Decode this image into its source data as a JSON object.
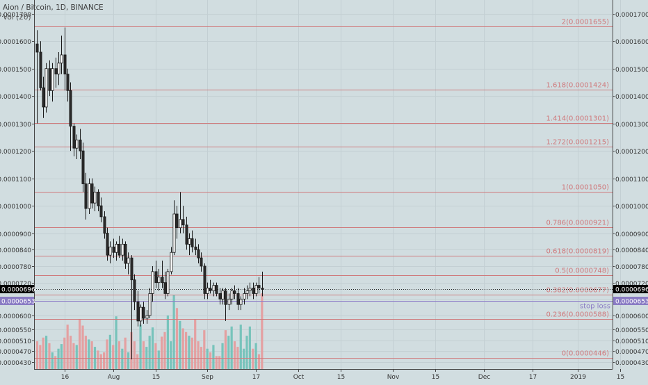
{
  "header": {
    "title": "Aion / Bitcoin, 1D, BINANCE",
    "volume_label": "Vol (20)"
  },
  "chart_data": {
    "type": "candlestick",
    "symbol": "Aion / Bitcoin",
    "interval": "1D",
    "exchange": "BINANCE",
    "ylim": [
      4.05e-05,
      0.000175
    ],
    "y_tick_labels": [
      "0.0001700",
      "0.0001600",
      "0.0001500",
      "0.0001400",
      "0.0001300",
      "0.0001200",
      "0.0001100",
      "0.0001000",
      "0.0000900",
      "0.0000840",
      "0.0000780",
      "0.0000720",
      "0.0000660",
      "0.0000600",
      "0.0000550",
      "0.0000510",
      "0.0000470",
      "0.0000430"
    ],
    "y_ticks": [
      0.00017,
      0.00016,
      0.00015,
      0.00014,
      0.00013,
      0.00012,
      0.00011,
      0.0001,
      9e-05,
      8.4e-05,
      7.8e-05,
      7.2e-05,
      6.6e-05,
      6e-05,
      5.5e-05,
      5.1e-05,
      4.7e-05,
      4.3e-05
    ],
    "x_tick_labels": [
      "16",
      "Aug",
      "15",
      "Sep",
      "17",
      "Oct",
      "15",
      "Nov",
      "15",
      "Dec",
      "17",
      "2019",
      "15"
    ],
    "x_ticks": [
      "2018-07-16",
      "2018-08-01",
      "2018-08-15",
      "2018-09-01",
      "2018-09-17",
      "2018-10-01",
      "2018-10-15",
      "2018-11-01",
      "2018-11-15",
      "2018-12-01",
      "2018-12-17",
      "2019-01-01",
      "2019-01-15"
    ],
    "fib_levels": [
      {
        "label": "2(0.0001655)",
        "value": 0.0001655
      },
      {
        "label": "1.618(0.0001424)",
        "value": 0.0001424
      },
      {
        "label": "1.414(0.0001301)",
        "value": 0.0001301
      },
      {
        "label": "1.272(0.0001215)",
        "value": 0.0001215
      },
      {
        "label": "1(0.0001050)",
        "value": 0.000105
      },
      {
        "label": "0.786(0.0000921)",
        "value": 9.21e-05
      },
      {
        "label": "0.618(0.0000819)",
        "value": 8.19e-05
      },
      {
        "label": "0.5(0.0000748)",
        "value": 7.48e-05
      },
      {
        "label": "0.382(0.0000677)",
        "value": 6.77e-05
      },
      {
        "label": "0.236(0.0000588)",
        "value": 5.88e-05
      },
      {
        "label": "0(0.0000446)",
        "value": 4.46e-05
      }
    ],
    "stop_loss": {
      "label": "stop loss",
      "value": 6.53e-05,
      "badge": "0.0000653"
    },
    "last_price": {
      "value": 6.96e-05,
      "badge": "0.0000696"
    },
    "candles": [
      {
        "date": "2018-07-07",
        "o": 0.000159,
        "h": 0.000164,
        "l": 0.00013,
        "c": 0.000156,
        "v": 0.3
      },
      {
        "date": "2018-07-08",
        "o": 0.000156,
        "h": 0.00016,
        "l": 0.000142,
        "c": 0.000143,
        "v": 0.26
      },
      {
        "date": "2018-07-09",
        "o": 0.000143,
        "h": 0.000147,
        "l": 0.000132,
        "c": 0.000136,
        "v": 0.34
      },
      {
        "date": "2018-07-10",
        "o": 0.000136,
        "h": 0.000152,
        "l": 0.000134,
        "c": 0.00015,
        "v": 0.36
      },
      {
        "date": "2018-07-11",
        "o": 0.00015,
        "h": 0.000153,
        "l": 0.00014,
        "c": 0.000142,
        "v": 0.28
      },
      {
        "date": "2018-07-12",
        "o": 0.000142,
        "h": 0.000152,
        "l": 0.000138,
        "c": 0.00015,
        "v": 0.18
      },
      {
        "date": "2018-07-13",
        "o": 0.00015,
        "h": 0.000154,
        "l": 0.000143,
        "c": 0.000148,
        "v": 0.14
      },
      {
        "date": "2018-07-14",
        "o": 0.000148,
        "h": 0.000156,
        "l": 0.000144,
        "c": 0.000152,
        "v": 0.22
      },
      {
        "date": "2018-07-15",
        "o": 0.000152,
        "h": 0.000162,
        "l": 0.000148,
        "c": 0.000155,
        "v": 0.27
      },
      {
        "date": "2018-07-16",
        "o": 0.000155,
        "h": 0.000165,
        "l": 0.000142,
        "c": 0.000148,
        "v": 0.34
      },
      {
        "date": "2018-07-17",
        "o": 0.000148,
        "h": 0.00015,
        "l": 0.000138,
        "c": 0.000142,
        "v": 0.48
      },
      {
        "date": "2018-07-18",
        "o": 0.000142,
        "h": 0.000145,
        "l": 0.00012,
        "c": 0.000129,
        "v": 0.36
      },
      {
        "date": "2018-07-19",
        "o": 0.000129,
        "h": 0.00013,
        "l": 0.000118,
        "c": 0.000121,
        "v": 0.28
      },
      {
        "date": "2018-07-20",
        "o": 0.000121,
        "h": 0.000126,
        "l": 0.000117,
        "c": 0.000124,
        "v": 0.26
      },
      {
        "date": "2018-07-21",
        "o": 0.000124,
        "h": 0.000128,
        "l": 0.000117,
        "c": 0.00012,
        "v": 0.54
      },
      {
        "date": "2018-07-22",
        "o": 0.00012,
        "h": 0.000123,
        "l": 0.000105,
        "c": 0.000108,
        "v": 0.47
      },
      {
        "date": "2018-07-23",
        "o": 0.000108,
        "h": 0.000112,
        "l": 9.5e-05,
        "c": 9.9e-05,
        "v": 0.36
      },
      {
        "date": "2018-07-24",
        "o": 9.9e-05,
        "h": 0.00011,
        "l": 9.7e-05,
        "c": 0.000108,
        "v": 0.32
      },
      {
        "date": "2018-07-25",
        "o": 0.000108,
        "h": 0.00011,
        "l": 9.9e-05,
        "c": 0.000101,
        "v": 0.3
      },
      {
        "date": "2018-07-26",
        "o": 0.000101,
        "h": 0.000107,
        "l": 9.8e-05,
        "c": 0.000105,
        "v": 0.24
      },
      {
        "date": "2018-07-27",
        "o": 0.000105,
        "h": 0.000106,
        "l": 9.8e-05,
        "c": 0.0001,
        "v": 0.2
      },
      {
        "date": "2018-07-28",
        "o": 0.0001,
        "h": 0.000103,
        "l": 9.4e-05,
        "c": 9.6e-05,
        "v": 0.16
      },
      {
        "date": "2018-07-29",
        "o": 9.6e-05,
        "h": 9.8e-05,
        "l": 8.8e-05,
        "c": 9e-05,
        "v": 0.18
      },
      {
        "date": "2018-07-30",
        "o": 9e-05,
        "h": 9.2e-05,
        "l": 8e-05,
        "c": 8.2e-05,
        "v": 0.32
      },
      {
        "date": "2018-07-31",
        "o": 8.2e-05,
        "h": 8.7e-05,
        "l": 7.9e-05,
        "c": 8.5e-05,
        "v": 0.37
      },
      {
        "date": "2018-08-01",
        "o": 8.5e-05,
        "h": 8.8e-05,
        "l": 8.1e-05,
        "c": 8.3e-05,
        "v": 0.26
      },
      {
        "date": "2018-08-02",
        "o": 8.3e-05,
        "h": 8.7e-05,
        "l": 8e-05,
        "c": 8.6e-05,
        "v": 0.57
      },
      {
        "date": "2018-08-03",
        "o": 8.6e-05,
        "h": 8.9e-05,
        "l": 8.1e-05,
        "c": 8.2e-05,
        "v": 0.3
      },
      {
        "date": "2018-08-04",
        "o": 8.2e-05,
        "h": 8.8e-05,
        "l": 8e-05,
        "c": 8.6e-05,
        "v": 0.22
      },
      {
        "date": "2018-08-05",
        "o": 8.6e-05,
        "h": 8.7e-05,
        "l": 7.7e-05,
        "c": 7.9e-05,
        "v": 0.34
      },
      {
        "date": "2018-08-06",
        "o": 7.9e-05,
        "h": 8.3e-05,
        "l": 7.5e-05,
        "c": 8.1e-05,
        "v": 0.18
      },
      {
        "date": "2018-08-07",
        "o": 8.1e-05,
        "h": 8.2e-05,
        "l": 4.4e-05,
        "c": 7.3e-05,
        "v": 0.4
      },
      {
        "date": "2018-08-08",
        "o": 7.3e-05,
        "h": 7.5e-05,
        "l": 6.2e-05,
        "c": 6.5e-05,
        "v": 0.3
      },
      {
        "date": "2018-08-09",
        "o": 6.5e-05,
        "h": 6.9e-05,
        "l": 5.6e-05,
        "c": 5.8e-05,
        "v": 0.16
      },
      {
        "date": "2018-08-10",
        "o": 5.8e-05,
        "h": 6.4e-05,
        "l": 5.6e-05,
        "c": 6.3e-05,
        "v": 0.48
      },
      {
        "date": "2018-08-11",
        "o": 6.3e-05,
        "h": 6.5e-05,
        "l": 5.7e-05,
        "c": 5.9e-05,
        "v": 0.3
      },
      {
        "date": "2018-08-12",
        "o": 5.9e-05,
        "h": 6.2e-05,
        "l": 5.7e-05,
        "c": 6e-05,
        "v": 0.24
      },
      {
        "date": "2018-08-13",
        "o": 6e-05,
        "h": 7e-05,
        "l": 5.9e-05,
        "c": 6.8e-05,
        "v": 0.36
      },
      {
        "date": "2018-08-14",
        "o": 6.8e-05,
        "h": 7.8e-05,
        "l": 6.5e-05,
        "c": 7.6e-05,
        "v": 0.45
      },
      {
        "date": "2018-08-15",
        "o": 7.6e-05,
        "h": 8e-05,
        "l": 7e-05,
        "c": 7.2e-05,
        "v": 0.28
      },
      {
        "date": "2018-08-16",
        "o": 7.2e-05,
        "h": 7.7e-05,
        "l": 6.9e-05,
        "c": 7.4e-05,
        "v": 0.2
      },
      {
        "date": "2018-08-17",
        "o": 7.4e-05,
        "h": 8e-05,
        "l": 7e-05,
        "c": 7.2e-05,
        "v": 0.35
      },
      {
        "date": "2018-08-18",
        "o": 7.2e-05,
        "h": 7.6e-05,
        "l": 6.6e-05,
        "c": 6.8e-05,
        "v": 0.4
      },
      {
        "date": "2018-08-19",
        "o": 6.8e-05,
        "h": 7.7e-05,
        "l": 6.7e-05,
        "c": 7.6e-05,
        "v": 0.58
      },
      {
        "date": "2018-08-20",
        "o": 7.6e-05,
        "h": 8.5e-05,
        "l": 7.5e-05,
        "c": 8.3e-05,
        "v": 0.3
      },
      {
        "date": "2018-08-21",
        "o": 8.3e-05,
        "h": 0.000102,
        "l": 8.2e-05,
        "c": 9.7e-05,
        "v": 0.8
      },
      {
        "date": "2018-08-22",
        "o": 9.7e-05,
        "h": 0.0001,
        "l": 8.8e-05,
        "c": 9.2e-05,
        "v": 0.66
      },
      {
        "date": "2018-08-23",
        "o": 9.2e-05,
        "h": 0.000105,
        "l": 9e-05,
        "c": 9.5e-05,
        "v": 0.52
      },
      {
        "date": "2018-08-24",
        "o": 9.5e-05,
        "h": 0.0001,
        "l": 9e-05,
        "c": 9.3e-05,
        "v": 0.44
      },
      {
        "date": "2018-08-25",
        "o": 9.3e-05,
        "h": 9.6e-05,
        "l": 8.4e-05,
        "c": 8.6e-05,
        "v": 0.4
      },
      {
        "date": "2018-08-26",
        "o": 8.6e-05,
        "h": 9e-05,
        "l": 8.2e-05,
        "c": 8.8e-05,
        "v": 0.36
      },
      {
        "date": "2018-08-27",
        "o": 8.8e-05,
        "h": 9.1e-05,
        "l": 8.3e-05,
        "c": 8.5e-05,
        "v": 0.34
      },
      {
        "date": "2018-08-28",
        "o": 8.5e-05,
        "h": 8.8e-05,
        "l": 8.2e-05,
        "c": 8.4e-05,
        "v": 0.54
      },
      {
        "date": "2018-08-29",
        "o": 8.4e-05,
        "h": 8.6e-05,
        "l": 7.9e-05,
        "c": 8.1e-05,
        "v": 0.3
      },
      {
        "date": "2018-08-30",
        "o": 8.1e-05,
        "h": 8.3e-05,
        "l": 7.6e-05,
        "c": 7.8e-05,
        "v": 0.24
      },
      {
        "date": "2018-08-31",
        "o": 7.8e-05,
        "h": 7.9e-05,
        "l": 6.6e-05,
        "c": 6.8e-05,
        "v": 0.42
      },
      {
        "date": "2018-09-01",
        "o": 6.8e-05,
        "h": 7.2e-05,
        "l": 6.6e-05,
        "c": 7e-05,
        "v": 0.22
      },
      {
        "date": "2018-09-02",
        "o": 7e-05,
        "h": 7.3e-05,
        "l": 6.8e-05,
        "c": 6.9e-05,
        "v": 0.18
      },
      {
        "date": "2018-09-03",
        "o": 6.9e-05,
        "h": 7.2e-05,
        "l": 6.7e-05,
        "c": 7.1e-05,
        "v": 0.26
      },
      {
        "date": "2018-09-04",
        "o": 7.1e-05,
        "h": 7.2e-05,
        "l": 6.7e-05,
        "c": 6.8e-05,
        "v": 0.14
      },
      {
        "date": "2018-09-05",
        "o": 6.8e-05,
        "h": 7e-05,
        "l": 6.4e-05,
        "c": 6.6e-05,
        "v": 0.14
      },
      {
        "date": "2018-09-06",
        "o": 6.6e-05,
        "h": 7e-05,
        "l": 6.4e-05,
        "c": 6.9e-05,
        "v": 0.28
      },
      {
        "date": "2018-09-07",
        "o": 6.9e-05,
        "h": 7e-05,
        "l": 5.8e-05,
        "c": 6.4e-05,
        "v": 0.42
      },
      {
        "date": "2018-09-08",
        "o": 6.4e-05,
        "h": 6.8e-05,
        "l": 6.2e-05,
        "c": 6.6e-05,
        "v": 0.36
      },
      {
        "date": "2018-09-09",
        "o": 6.6e-05,
        "h": 7e-05,
        "l": 6.4e-05,
        "c": 6.9e-05,
        "v": 0.46
      },
      {
        "date": "2018-09-10",
        "o": 6.9e-05,
        "h": 7.1e-05,
        "l": 6.6e-05,
        "c": 6.8e-05,
        "v": 0.3
      },
      {
        "date": "2018-09-11",
        "o": 6.8e-05,
        "h": 7e-05,
        "l": 6.2e-05,
        "c": 6.4e-05,
        "v": 0.24
      },
      {
        "date": "2018-09-12",
        "o": 6.4e-05,
        "h": 6.7e-05,
        "l": 6.2e-05,
        "c": 6.6e-05,
        "v": 0.48
      },
      {
        "date": "2018-09-13",
        "o": 6.6e-05,
        "h": 7e-05,
        "l": 6.4e-05,
        "c": 6.8e-05,
        "v": 0.22
      },
      {
        "date": "2018-09-14",
        "o": 6.8e-05,
        "h": 7.1e-05,
        "l": 6.6e-05,
        "c": 6.9e-05,
        "v": 0.36
      },
      {
        "date": "2018-09-15",
        "o": 6.9e-05,
        "h": 7.2e-05,
        "l": 6.7e-05,
        "c": 7e-05,
        "v": 0.46
      },
      {
        "date": "2018-09-16",
        "o": 7e-05,
        "h": 7.2e-05,
        "l": 6.6e-05,
        "c": 6.8e-05,
        "v": 0.22
      },
      {
        "date": "2018-09-17",
        "o": 6.8e-05,
        "h": 7.2e-05,
        "l": 6.7e-05,
        "c": 7.1e-05,
        "v": 0.28
      },
      {
        "date": "2018-09-18",
        "o": 7.1e-05,
        "h": 7.4e-05,
        "l": 6.8e-05,
        "c": 7e-05,
        "v": 0.16
      },
      {
        "date": "2018-09-19",
        "o": 7e-05,
        "h": 7.6e-05,
        "l": 6.7e-05,
        "c": 6.96e-05,
        "v": 0.82
      }
    ]
  }
}
